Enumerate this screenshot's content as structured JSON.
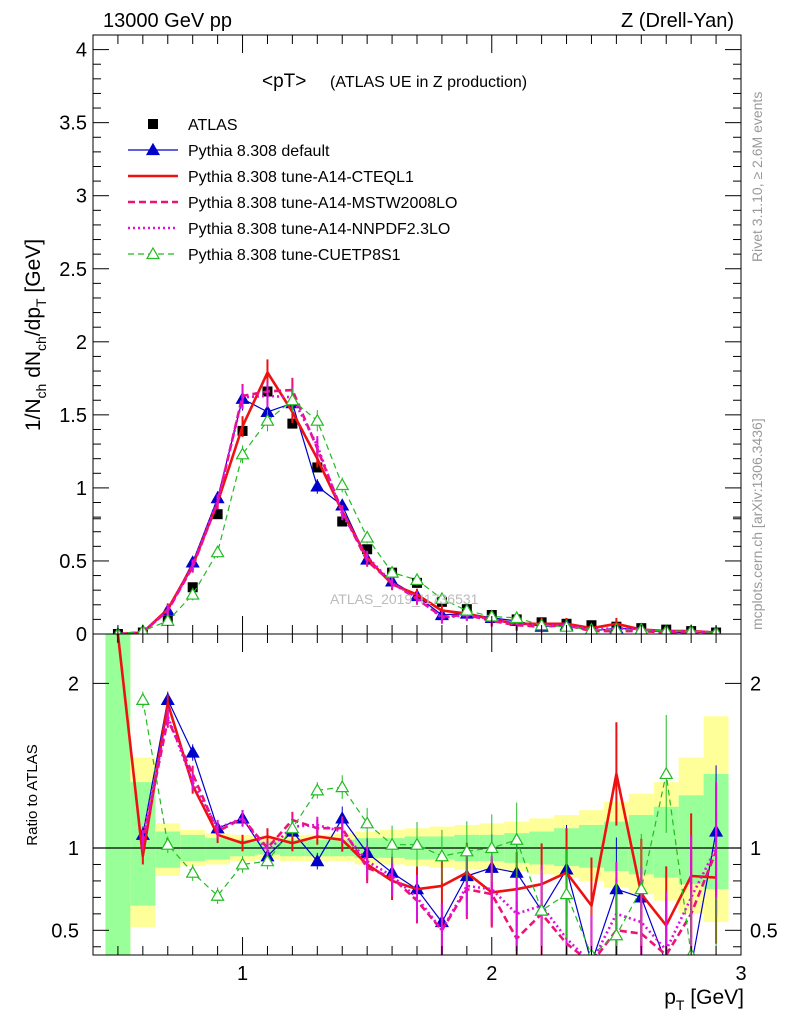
{
  "header": {
    "left": "13000 GeV pp",
    "right": "Z (Drell-Yan)"
  },
  "side": {
    "rivet": "Rivet 3.1.10, ≥ 2.6M events",
    "mcplots": "mcplots.cern.ch [arXiv:1306.3436]"
  },
  "watermark": "ATLAS_2019_I1736531",
  "colors": {
    "ATLAS": "#000000",
    "default": "#0000cc",
    "CTEQL1": "#ee1111",
    "MSTW": "#ee1177",
    "NNPDF": "#dd11dd",
    "CUETP8S1": "#22bb22",
    "band_green": "#99ff99",
    "band_yellow": "#ffff99"
  },
  "chart_data": [
    {
      "type": "line",
      "title": "<pT> (ATLAS UE in Z production)",
      "title_main": "<pT>",
      "title_sub": "(ATLAS UE in Z production)",
      "ylabel": "1/N_ch dN_ch/dp_T [GeV]",
      "xlim": [
        0.4,
        3.0
      ],
      "ylim": [
        0,
        4.1
      ],
      "yticks": [
        0,
        0.5,
        1,
        1.5,
        2,
        2.5,
        3,
        3.5,
        4
      ],
      "yticklabels": [
        "0",
        "0.5",
        "1",
        "1.5",
        "2",
        "2.5",
        "3",
        "3.5",
        "4"
      ],
      "legend_position": "top-left",
      "x": [
        0.5,
        0.6,
        0.7,
        0.8,
        0.9,
        1.0,
        1.1,
        1.2,
        1.3,
        1.4,
        1.5,
        1.6,
        1.7,
        1.8,
        1.9,
        2.0,
        2.1,
        2.2,
        2.3,
        2.4,
        2.5,
        2.6,
        2.7,
        2.8,
        2.9
      ],
      "series": [
        {
          "name": "ATLAS",
          "key": "ATLAS",
          "style": "data",
          "values": [
            0.0,
            0.01,
            0.09,
            0.32,
            0.82,
            1.39,
            1.66,
            1.44,
            1.14,
            0.77,
            0.58,
            0.42,
            0.35,
            0.22,
            0.17,
            0.13,
            0.1,
            0.08,
            0.07,
            0.06,
            0.05,
            0.04,
            0.03,
            0.02,
            0.01
          ]
        },
        {
          "name": "Pythia 8.308 default",
          "key": "default",
          "style": "solid-thin-triangle",
          "values": [
            0.0,
            0.01,
            0.16,
            0.49,
            0.93,
            1.61,
            1.52,
            1.58,
            1.01,
            0.88,
            0.51,
            0.36,
            0.26,
            0.13,
            0.14,
            0.11,
            0.09,
            0.05,
            0.06,
            0.02,
            0.04,
            0.03,
            0.01,
            0.01,
            0.01
          ]
        },
        {
          "name": "Pythia 8.308 tune-A14-CTEQL1",
          "key": "CTEQL1",
          "style": "solid-thick",
          "values": [
            0.0,
            0.01,
            0.17,
            0.47,
            0.9,
            1.42,
            1.79,
            1.52,
            1.2,
            0.84,
            0.52,
            0.34,
            0.27,
            0.16,
            0.14,
            0.1,
            0.07,
            0.07,
            0.07,
            0.04,
            0.07,
            0.03,
            0.02,
            0.02,
            0.01
          ]
        },
        {
          "name": "Pythia 8.308 tune-A14-MSTW2008LO",
          "key": "MSTW",
          "style": "dashed-thick",
          "values": [
            0.0,
            0.01,
            0.16,
            0.46,
            0.9,
            1.63,
            1.66,
            1.67,
            1.27,
            0.84,
            0.5,
            0.35,
            0.24,
            0.12,
            0.13,
            0.09,
            0.06,
            0.05,
            0.06,
            0.02,
            0.02,
            0.02,
            0.01,
            0.01,
            0.01
          ]
        },
        {
          "name": "Pythia 8.308 tune-A14-NNPDF2.3LO",
          "key": "NNPDF",
          "style": "dotted-thick",
          "values": [
            0.0,
            0.01,
            0.16,
            0.47,
            0.91,
            1.62,
            1.63,
            1.62,
            1.29,
            0.82,
            0.53,
            0.35,
            0.25,
            0.11,
            0.13,
            0.1,
            0.07,
            0.06,
            0.06,
            0.03,
            0.04,
            0.03,
            0.02,
            0.02,
            0.01
          ]
        },
        {
          "name": "Pythia 8.308 tune-CUETP8S1",
          "key": "CUETP8S1",
          "style": "dashed-thin-open-triangle",
          "values": [
            0.0,
            0.02,
            0.09,
            0.27,
            0.56,
            1.23,
            1.46,
            1.6,
            1.46,
            1.02,
            0.66,
            0.42,
            0.37,
            0.24,
            0.16,
            0.12,
            0.11,
            0.06,
            0.05,
            0.03,
            0.03,
            0.03,
            0.02,
            0.02,
            0.01
          ]
        }
      ]
    },
    {
      "type": "line",
      "ylabel": "Ratio to ATLAS",
      "xlabel": "p_T [GeV]",
      "xlim": [
        0.4,
        3.0
      ],
      "ylim": [
        0.35,
        2.3
      ],
      "xticks": [
        1,
        2,
        3
      ],
      "xticklabels": [
        "1",
        "2",
        "3"
      ],
      "yticks": [
        0.5,
        1,
        2
      ],
      "yticklabels": [
        "0.5",
        "1",
        "2"
      ],
      "reference_line": 1,
      "band_edges": [
        0.45,
        0.55,
        0.65,
        0.75,
        0.85,
        0.95,
        1.05,
        1.15,
        1.25,
        1.35,
        1.45,
        1.55,
        1.65,
        1.75,
        1.85,
        1.95,
        2.05,
        2.15,
        2.25,
        2.35,
        2.45,
        2.55,
        2.65,
        2.75,
        2.85,
        2.95
      ],
      "band_stat_low": [
        0.35,
        0.65,
        0.88,
        0.92,
        0.93,
        0.95,
        0.96,
        0.95,
        0.95,
        0.95,
        0.94,
        0.94,
        0.93,
        0.93,
        0.92,
        0.92,
        0.91,
        0.9,
        0.89,
        0.88,
        0.86,
        0.84,
        0.82,
        0.78,
        0.75
      ],
      "band_stat_high": [
        2.3,
        1.4,
        1.1,
        1.08,
        1.06,
        1.05,
        1.04,
        1.05,
        1.05,
        1.05,
        1.06,
        1.06,
        1.07,
        1.07,
        1.08,
        1.08,
        1.09,
        1.1,
        1.12,
        1.14,
        1.16,
        1.2,
        1.25,
        1.32,
        1.45
      ],
      "band_tot_low": [
        0.35,
        0.52,
        0.83,
        0.89,
        0.9,
        0.92,
        0.93,
        0.92,
        0.92,
        0.92,
        0.9,
        0.9,
        0.89,
        0.88,
        0.87,
        0.87,
        0.86,
        0.84,
        0.82,
        0.8,
        0.76,
        0.72,
        0.68,
        0.6,
        0.55
      ],
      "band_tot_high": [
        2.3,
        1.55,
        1.15,
        1.11,
        1.09,
        1.08,
        1.07,
        1.08,
        1.08,
        1.09,
        1.1,
        1.11,
        1.12,
        1.13,
        1.14,
        1.15,
        1.16,
        1.18,
        1.2,
        1.23,
        1.28,
        1.33,
        1.4,
        1.55,
        1.8
      ],
      "x": [
        0.5,
        0.6,
        0.7,
        0.8,
        0.9,
        1.0,
        1.1,
        1.2,
        1.3,
        1.4,
        1.5,
        1.6,
        1.7,
        1.8,
        1.9,
        2.0,
        2.1,
        2.2,
        2.3,
        2.4,
        2.5,
        2.6,
        2.7,
        2.8,
        2.9
      ],
      "series": [
        {
          "key": "default",
          "style": "solid-thin-triangle",
          "values": [
            null,
            1.08,
            1.9,
            1.58,
            1.12,
            1.18,
            0.95,
            1.1,
            0.92,
            1.18,
            0.97,
            0.85,
            0.75,
            0.55,
            0.83,
            0.88,
            0.85,
            0.62,
            0.87,
            0.3,
            0.75,
            0.7,
            0.3,
            0.28,
            1.1
          ]
        },
        {
          "key": "CTEQL1",
          "style": "solid-thick",
          "values": [
            2.3,
            0.95,
            1.88,
            1.38,
            1.08,
            1.03,
            1.07,
            1.03,
            1.07,
            1.05,
            0.9,
            0.8,
            0.75,
            0.77,
            0.85,
            0.73,
            0.75,
            0.78,
            0.85,
            0.65,
            1.45,
            0.72,
            0.53,
            0.83,
            0.82
          ]
        },
        {
          "key": "MSTW",
          "style": "dashed-thick",
          "values": [
            null,
            1.03,
            1.78,
            1.45,
            1.1,
            1.18,
            1.0,
            1.17,
            1.12,
            1.12,
            0.88,
            0.82,
            0.68,
            0.5,
            0.75,
            0.72,
            0.45,
            0.6,
            0.42,
            0.3,
            0.5,
            0.48,
            0.35,
            0.6,
            0.98
          ]
        },
        {
          "key": "NNPDF",
          "style": "dotted-thick",
          "values": [
            null,
            1.06,
            1.8,
            1.4,
            1.12,
            1.18,
            0.98,
            1.13,
            1.14,
            1.1,
            0.92,
            0.83,
            0.7,
            0.5,
            0.77,
            0.75,
            0.6,
            0.65,
            0.45,
            0.3,
            0.6,
            0.55,
            0.38,
            0.7,
            1.0
          ]
        },
        {
          "key": "CUETP8S1",
          "style": "dashed-thin-open-triangle",
          "values": [
            null,
            1.9,
            1.02,
            0.85,
            0.71,
            0.9,
            0.92,
            1.12,
            1.35,
            1.37,
            1.15,
            1.02,
            1.02,
            0.95,
            0.98,
            1.0,
            1.05,
            0.62,
            0.72,
            0.35,
            0.47,
            0.75,
            1.45,
            0.35,
            0.3
          ]
        }
      ]
    }
  ]
}
